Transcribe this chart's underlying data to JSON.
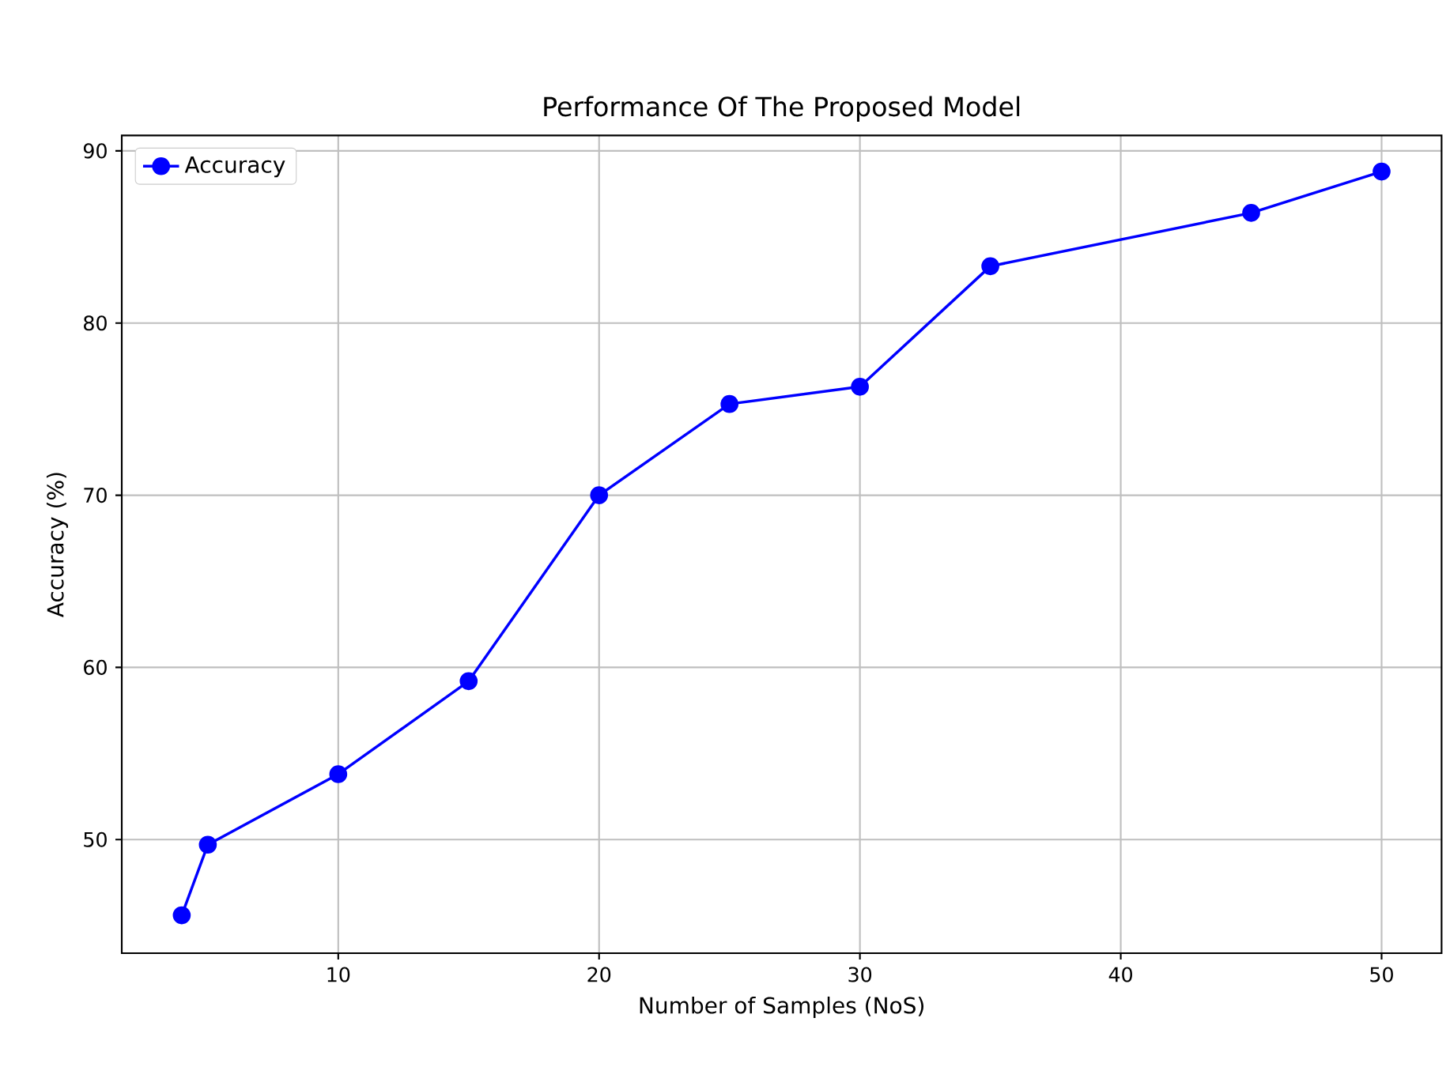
{
  "chart_data": {
    "type": "line",
    "title": "Performance Of The Proposed Model",
    "xlabel": "Number of Samples (NoS)",
    "ylabel": "Accuracy (%)",
    "x": [
      4,
      5,
      10,
      15,
      20,
      25,
      30,
      35,
      45,
      50
    ],
    "series": [
      {
        "name": "Accuracy",
        "color": "#0000ff",
        "values": [
          45.6,
          49.7,
          53.8,
          59.2,
          70.0,
          75.3,
          76.3,
          83.3,
          86.4,
          88.8
        ]
      }
    ],
    "xlim": [
      1.7,
      52.3
    ],
    "ylim": [
      43.4,
      90.9
    ],
    "xticks": [
      10,
      20,
      30,
      40,
      50
    ],
    "yticks": [
      50,
      60,
      70,
      80,
      90
    ],
    "grid": true,
    "legend": "top left",
    "marker": "circle",
    "line_style": "solid"
  }
}
